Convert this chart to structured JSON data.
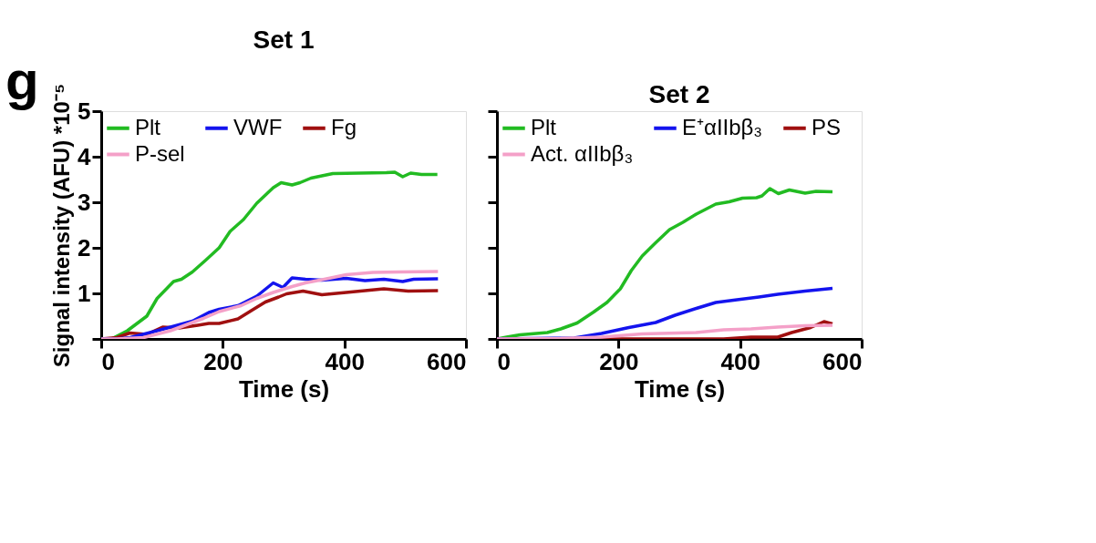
{
  "chart_data": [
    {
      "type": "line",
      "title": "Set 1",
      "xlabel": "Time (s)",
      "ylabel": "Signal intensity (AFU) *10⁻⁵",
      "annotations": [
        "g"
      ],
      "xlim": [
        0,
        600
      ],
      "xticks": [
        0,
        200,
        400,
        600
      ],
      "ylim": [
        0,
        5
      ],
      "yticks": [
        {
          "value": 0,
          "label": null
        },
        1,
        2,
        3,
        4,
        5
      ],
      "legend": "top left",
      "grid": false,
      "line_style": "solid",
      "series": [
        {
          "name": "Plt",
          "color": "#22bb22",
          "x": [
            0,
            17,
            43,
            75,
            92,
            119,
            132,
            150,
            172,
            194,
            212,
            234,
            256,
            283,
            296,
            314,
            327,
            345,
            381,
            425,
            469,
            483,
            496,
            509,
            527,
            553
          ],
          "values": [
            0,
            0,
            0.18,
            0.5,
            0.89,
            1.26,
            1.31,
            1.47,
            1.73,
            2.0,
            2.36,
            2.62,
            2.98,
            3.32,
            3.43,
            3.38,
            3.43,
            3.53,
            3.63,
            3.64,
            3.65,
            3.66,
            3.56,
            3.64,
            3.61,
            3.61
          ]
        },
        {
          "name": "Fg",
          "color": "#a01010",
          "x": [
            0,
            26,
            47,
            75,
            101,
            128,
            159,
            177,
            194,
            225,
            248,
            270,
            292,
            305,
            332,
            363,
            403,
            465,
            505,
            554
          ],
          "values": [
            0,
            0.03,
            0.13,
            0.1,
            0.26,
            0.24,
            0.3,
            0.34,
            0.34,
            0.44,
            0.63,
            0.81,
            0.92,
            0.99,
            1.05,
            0.97,
            1.02,
            1.1,
            1.05,
            1.06
          ]
        },
        {
          "name": "VWF",
          "color": "#1414ee",
          "x": [
            0,
            26,
            48,
            92,
            150,
            177,
            194,
            225,
            256,
            283,
            299,
            314,
            336,
            363,
            403,
            434,
            465,
            496,
            514,
            554
          ],
          "values": [
            0,
            0,
            0.03,
            0.18,
            0.39,
            0.58,
            0.65,
            0.73,
            0.94,
            1.23,
            1.13,
            1.34,
            1.31,
            1.29,
            1.33,
            1.28,
            1.31,
            1.26,
            1.31,
            1.32
          ]
        },
        {
          "name": "P-sel",
          "color": "#f4a0c8",
          "x": [
            0,
            26,
            70,
            114,
            168,
            194,
            230,
            256,
            283,
            314,
            336,
            367,
            403,
            447,
            492,
            554
          ],
          "values": [
            0,
            0,
            0.03,
            0.18,
            0.45,
            0.6,
            0.73,
            0.89,
            1.02,
            1.15,
            1.23,
            1.31,
            1.41,
            1.46,
            1.47,
            1.48
          ]
        }
      ]
    },
    {
      "type": "line",
      "title": "Set 2",
      "xlabel": "Time (s)",
      "xlim": [
        0,
        600
      ],
      "xticks": [
        0,
        200,
        400,
        600
      ],
      "ylim": [
        0,
        5
      ],
      "yticks": [
        {
          "value": 0,
          "label": null
        },
        {
          "value": 1,
          "label": null
        },
        {
          "value": 2,
          "label": null
        },
        {
          "value": 3,
          "label": null
        },
        {
          "value": 4,
          "label": null
        },
        {
          "value": 5,
          "label": null
        }
      ],
      "tick_labels": "x",
      "legend": "top left",
      "grid": false,
      "line_style": "solid",
      "series": [
        {
          "name": "Plt",
          "color": "#22bb22",
          "x": [
            0,
            16,
            38,
            83,
            105,
            132,
            159,
            181,
            203,
            221,
            239,
            261,
            284,
            306,
            328,
            360,
            382,
            404,
            427,
            436,
            449,
            463,
            481,
            507,
            525,
            552
          ],
          "values": [
            0,
            0.04,
            0.09,
            0.14,
            0.22,
            0.35,
            0.59,
            0.8,
            1.1,
            1.5,
            1.82,
            2.11,
            2.4,
            2.56,
            2.74,
            2.96,
            3.01,
            3.09,
            3.1,
            3.14,
            3.3,
            3.19,
            3.27,
            3.2,
            3.24,
            3.23
          ]
        },
        {
          "name": "PS",
          "color": "#a01010",
          "x": [
            0,
            373,
            418,
            462,
            485,
            516,
            538,
            552
          ],
          "values": [
            0,
            0,
            0.04,
            0.04,
            0.14,
            0.25,
            0.38,
            0.33
          ]
        },
        {
          "name": "E⁺αIIbβ₃",
          "color": "#1414ee",
          "x": [
            0,
            60,
            127,
            172,
            217,
            261,
            293,
            328,
            360,
            395,
            431,
            462,
            507,
            552
          ],
          "values": [
            0,
            0.01,
            0.02,
            0.12,
            0.25,
            0.36,
            0.52,
            0.67,
            0.8,
            0.86,
            0.92,
            0.98,
            1.05,
            1.11
          ]
        },
        {
          "name": "Act. αIIbβ₃",
          "color": "#f4a0c8",
          "x": [
            0,
            105,
            172,
            239,
            328,
            373,
            418,
            462,
            507,
            552
          ],
          "values": [
            0,
            0.01,
            0.04,
            0.11,
            0.14,
            0.2,
            0.22,
            0.26,
            0.29,
            0.3
          ]
        }
      ]
    }
  ]
}
